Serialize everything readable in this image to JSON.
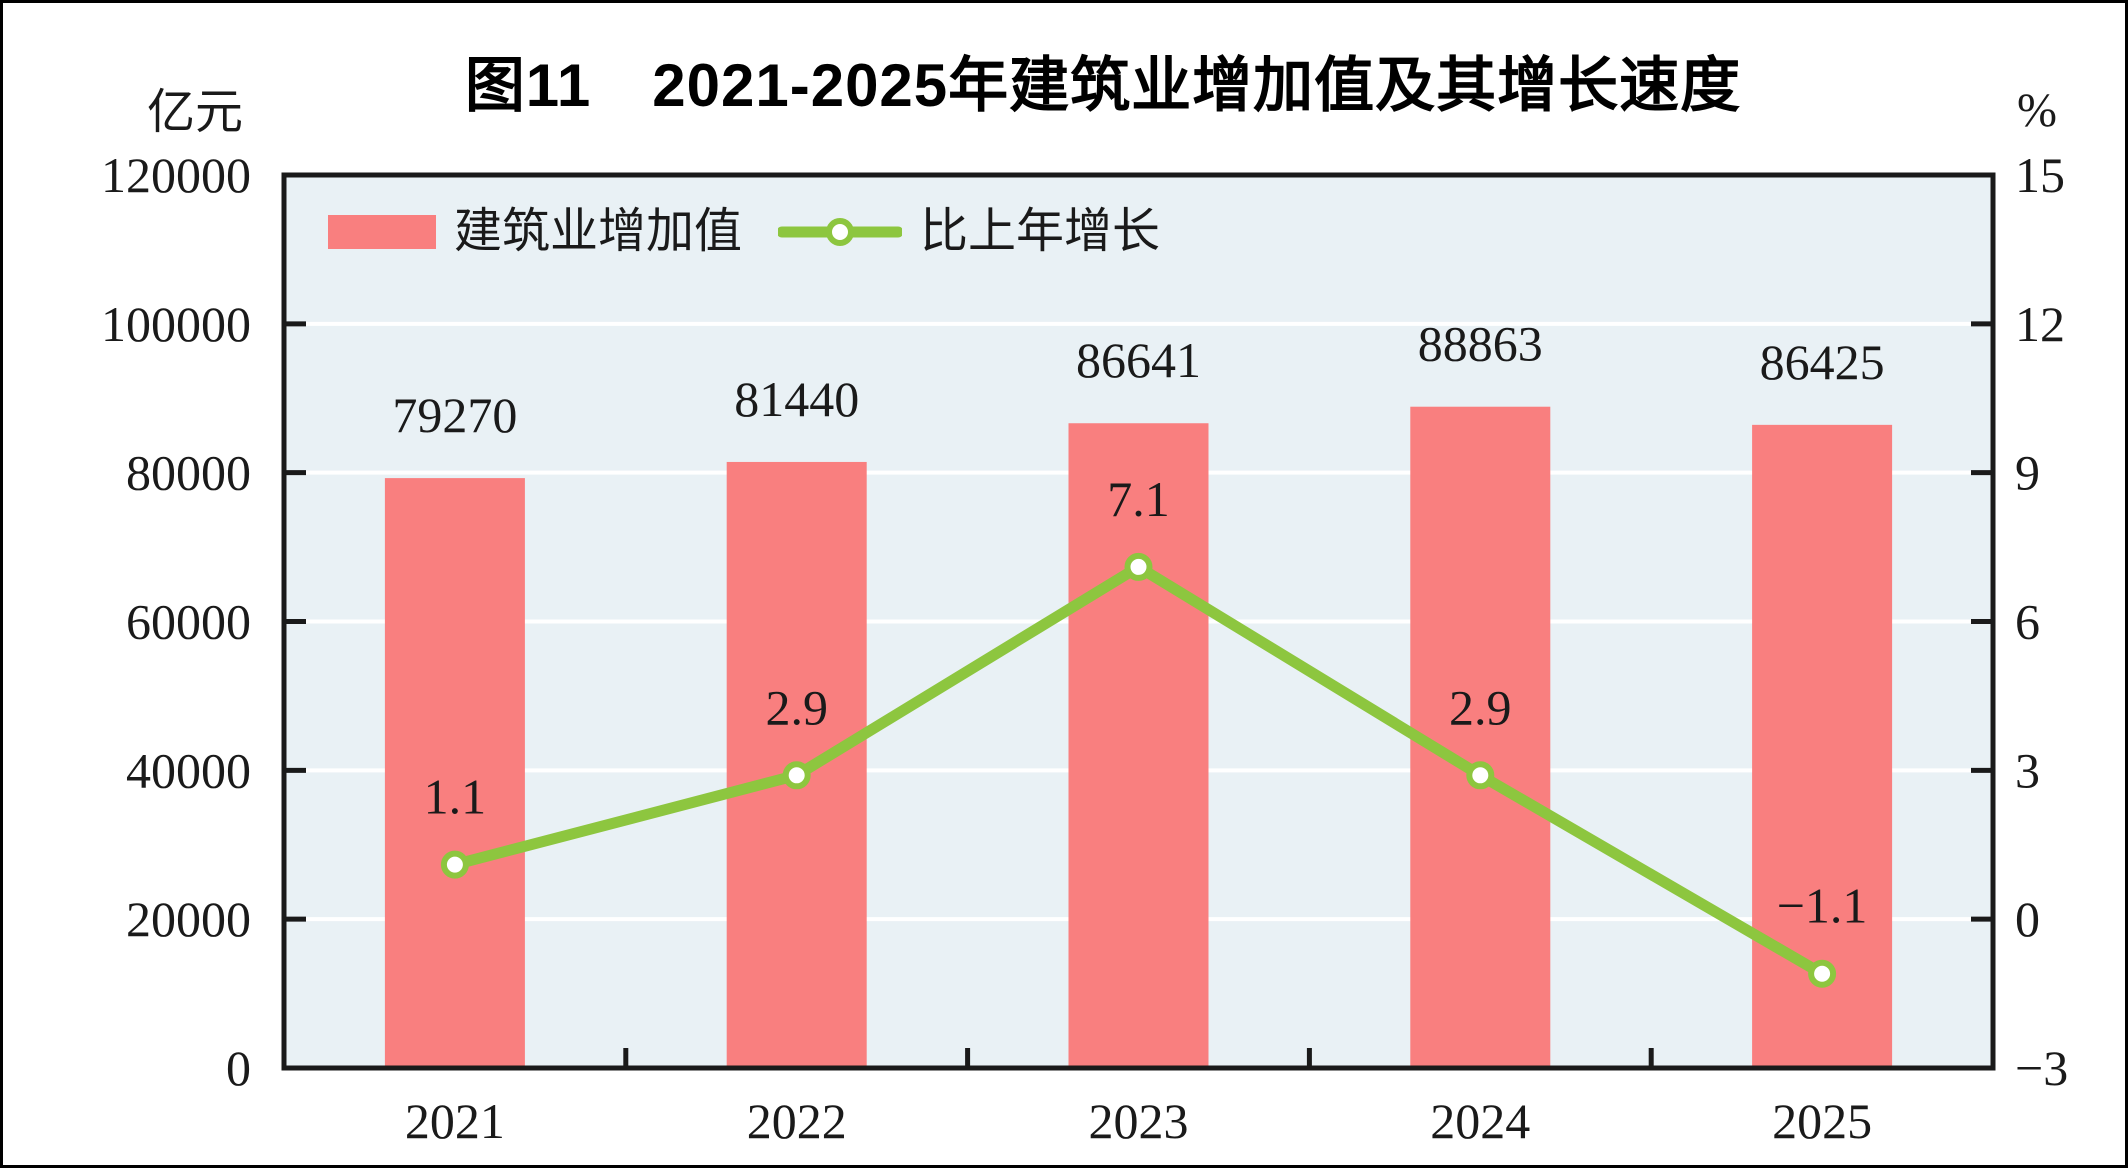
{
  "title": "图11　2021-2025年建筑业增加值及其增长速度",
  "left_axis_unit": "亿元",
  "right_axis_unit": "%",
  "legend": {
    "bar_label": "建筑业增加值",
    "line_label": "比上年增长"
  },
  "colors": {
    "bar": "#F97F7F",
    "line": "#8DC63F",
    "marker_fill": "#FFFFFF",
    "plot_bg": "#E9F1F5",
    "grid": "#FFFFFF",
    "axis": "#1A1A1A",
    "text": "#1A1A1A"
  },
  "chart_data": {
    "type": "bar+line combo",
    "categories": [
      "2021",
      "2022",
      "2023",
      "2024",
      "2025"
    ],
    "series": [
      {
        "name": "建筑业增加值",
        "type": "bar",
        "axis": "left",
        "unit": "亿元",
        "values": [
          79270,
          81440,
          86641,
          88863,
          86425
        ],
        "labels": [
          "79270",
          "81440",
          "86641",
          "88863",
          "86425"
        ]
      },
      {
        "name": "比上年增长",
        "type": "line",
        "axis": "right",
        "unit": "%",
        "values": [
          1.1,
          2.9,
          7.1,
          2.9,
          -1.1
        ],
        "labels": [
          "1.1",
          "2.9",
          "7.1",
          "2.9",
          "−1.1"
        ]
      }
    ],
    "left_axis": {
      "min": 0,
      "max": 120000,
      "step": 20000,
      "tick_labels": [
        "0",
        "20000",
        "40000",
        "60000",
        "80000",
        "100000",
        "120000"
      ]
    },
    "right_axis": {
      "min": -3,
      "max": 15,
      "step": 3,
      "tick_labels": [
        "−3",
        "0",
        "3",
        "6",
        "9",
        "12",
        "15"
      ]
    },
    "grid": "horizontal white gridlines at left-axis steps",
    "legend_position": "top-left inside plot area"
  }
}
